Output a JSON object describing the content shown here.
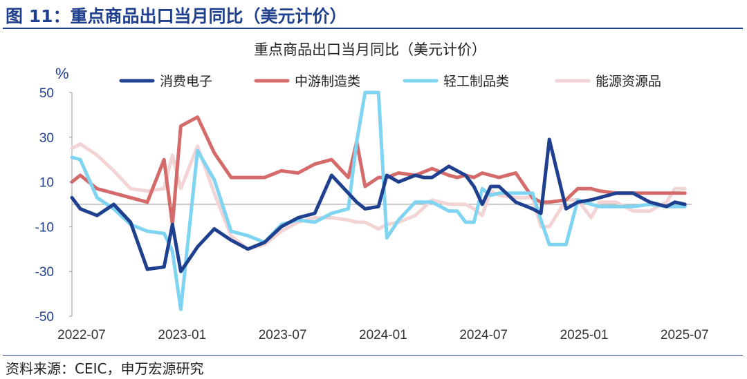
{
  "figure": {
    "title": "图 11：重点商品出口当月同比（美元计价）",
    "source": "资料来源：CEIC，申万宏源研究"
  },
  "chart_data": {
    "type": "line",
    "title": "重点商品出口当月同比（美元计价）",
    "y_unit": "%",
    "ylim": [
      -50,
      50
    ],
    "yticks": [
      50,
      30,
      10,
      -10,
      -30,
      -50
    ],
    "x_range": [
      "2022-07",
      "2025-08"
    ],
    "xtick_labels": [
      "2022-07",
      "2023-01",
      "2023-07",
      "2024-01",
      "2024-07",
      "2025-01",
      "2025-07"
    ],
    "xtick_positions": [
      0,
      6,
      12,
      18,
      24,
      30,
      36
    ],
    "legend_position": "top",
    "series": [
      {
        "name": "消费电子",
        "color": "#1f3f8f",
        "x": [
          0,
          0.5,
          1.5,
          2.5,
          3.5,
          4.5,
          5.5,
          6,
          6.5,
          7.5,
          8.5,
          9.5,
          10.5,
          11.5,
          12.5,
          13.5,
          14.5,
          15.5,
          16,
          17,
          17.5,
          18.3,
          18.8,
          19.5,
          20.5,
          21,
          21.5,
          22.5,
          23.5,
          24,
          24.5,
          25,
          25.5,
          26.5,
          27.5,
          28,
          28.5,
          29.5,
          30.2,
          31,
          31.5,
          32.5,
          33.5,
          34.5,
          35.5,
          36,
          36.6
        ],
        "y": [
          3,
          -2,
          -5,
          0,
          -8,
          -29,
          -28,
          -9,
          -30,
          -19,
          -11,
          -16,
          -20,
          -17,
          -10,
          -6,
          -4,
          13,
          9,
          1,
          -2,
          -1,
          13,
          10,
          13,
          12,
          12,
          17,
          13,
          8,
          0,
          8,
          8,
          1,
          -2,
          -4,
          29,
          -2,
          1,
          2,
          3,
          5,
          5,
          1,
          -1,
          1,
          0
        ]
      },
      {
        "name": "中游制造类",
        "color": "#d46a6a",
        "x": [
          0,
          0.5,
          1.5,
          2.5,
          3.5,
          4.5,
          5.5,
          6,
          6.5,
          7.5,
          8.5,
          9.5,
          10.5,
          11.5,
          12.5,
          13.5,
          14.5,
          15.5,
          16.5,
          17,
          17.5,
          18.3,
          18.8,
          19.5,
          20.5,
          21.5,
          22.5,
          23,
          23.5,
          24,
          24.5,
          25,
          25.5,
          26.5,
          27.5,
          28,
          28.5,
          29.5,
          30.2,
          31,
          31.5,
          32.5,
          33.5,
          34.5,
          35.5,
          36,
          36.6
        ],
        "y": [
          10,
          13,
          7,
          5,
          3,
          1,
          20,
          -9,
          35,
          39,
          23,
          12,
          12,
          12,
          15,
          14,
          18,
          20,
          12,
          28,
          8,
          12,
          12,
          14,
          13,
          16,
          13,
          12,
          13,
          12,
          14,
          13,
          12,
          14,
          3,
          1,
          1,
          2,
          7,
          7,
          6,
          5,
          5,
          5,
          5,
          5,
          5
        ]
      },
      {
        "name": "轻工制品类",
        "color": "#7fd4f2",
        "x": [
          0,
          0.5,
          1.5,
          2.5,
          3.5,
          4.5,
          5.5,
          6,
          6.5,
          7.5,
          8.5,
          9.5,
          10.5,
          11.5,
          12.5,
          13.5,
          14.5,
          15.5,
          16.5,
          17,
          17.5,
          18.3,
          18.8,
          19.5,
          20.5,
          21.5,
          22.5,
          23,
          23.5,
          24,
          24.5,
          25,
          25.5,
          26.5,
          27.5,
          28,
          28.5,
          29.5,
          30.2,
          31,
          31.5,
          32.5,
          33.5,
          34.5,
          35.5,
          36,
          36.6
        ],
        "y": [
          21,
          20,
          3,
          -2,
          -9,
          -12,
          -13,
          -21,
          -47,
          24,
          11,
          -12,
          -14,
          -17,
          -9,
          -7,
          -8,
          -4,
          -2,
          28,
          50,
          50,
          -15,
          -7,
          1,
          1,
          -3,
          -3,
          -8,
          -8,
          7,
          4,
          5,
          5,
          5,
          -7,
          -18,
          -18,
          2,
          0,
          -1,
          -1,
          -1,
          0,
          -1,
          -1,
          -1
        ]
      },
      {
        "name": "能源资源品",
        "color": "#f3d4d4",
        "x": [
          0,
          0.5,
          1.5,
          2.5,
          3.5,
          4.5,
          5.5,
          6,
          6.5,
          7.5,
          8.5,
          9.5,
          10.5,
          11.5,
          12.5,
          13.5,
          14.5,
          15.5,
          16.5,
          17,
          17.5,
          18.3,
          18.8,
          19.5,
          20.5,
          21.5,
          22.5,
          23,
          23.5,
          24,
          24.5,
          25,
          25.5,
          26.5,
          27.5,
          28,
          28.5,
          29.5,
          30.2,
          31,
          31.5,
          32.5,
          33.5,
          34.5,
          35.5,
          36,
          36.6
        ],
        "y": [
          25,
          27,
          22,
          15,
          7,
          6,
          7,
          22,
          7,
          26,
          5,
          -14,
          -20,
          -18,
          -12,
          -8,
          -6,
          -6,
          -7,
          -8,
          -8,
          -11,
          -9,
          -8,
          -5,
          2,
          0,
          0,
          0,
          -2,
          -5,
          6,
          4,
          3,
          3,
          -10,
          -10,
          2,
          2,
          -6,
          1,
          1,
          -3,
          -3,
          1,
          7,
          7
        ]
      }
    ]
  }
}
